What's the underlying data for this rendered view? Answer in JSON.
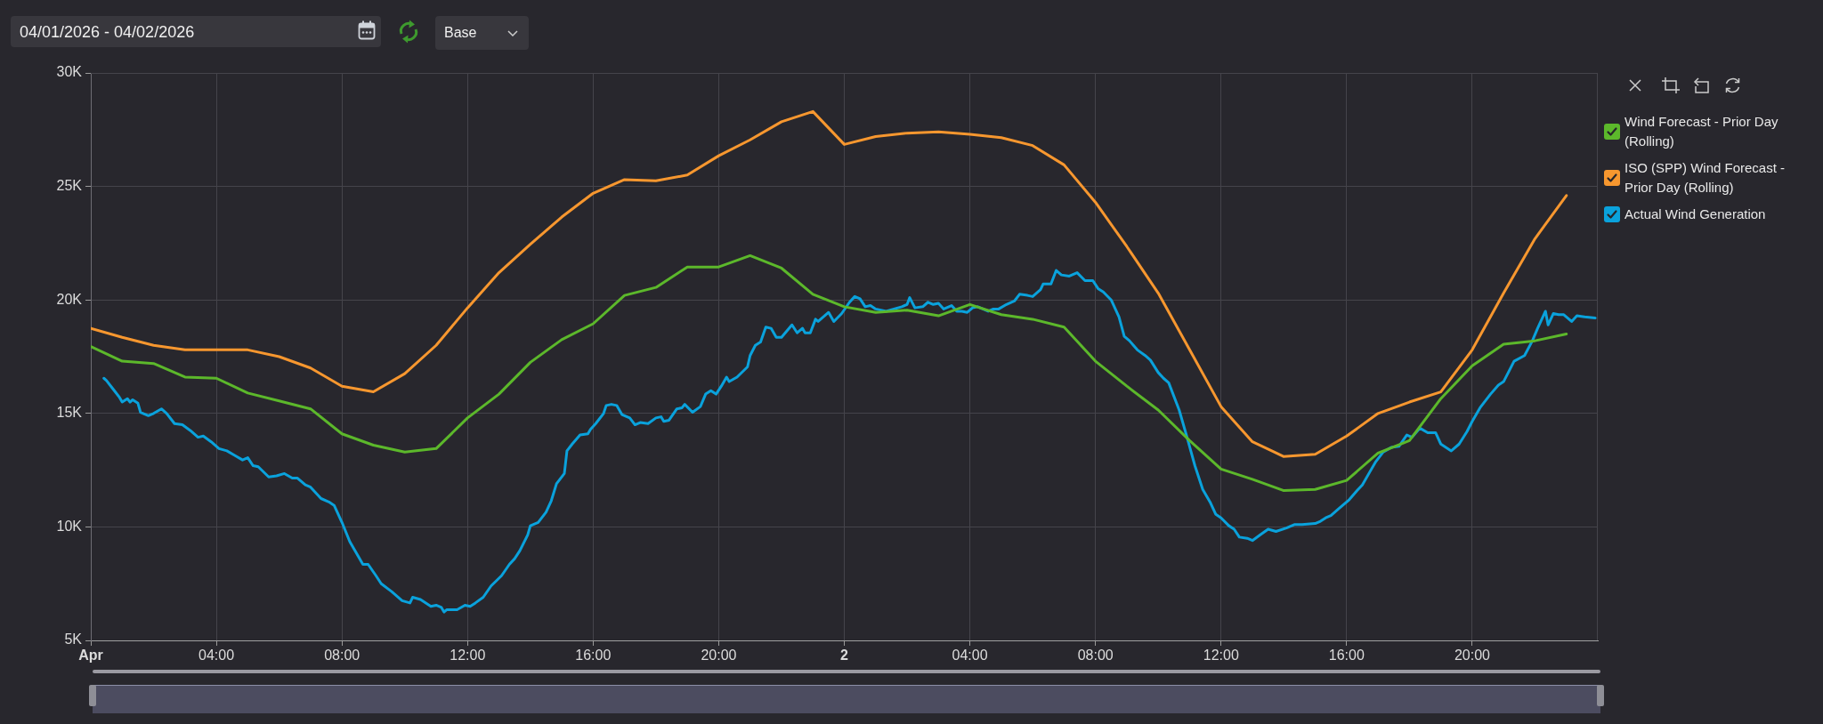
{
  "chart_data": {
    "type": "line",
    "annotations": [
      "04/01/2026 - 04/02/2026",
      "Base"
    ],
    "x": [
      "2026-04-01T00:00",
      "2026-04-01T01:00",
      "2026-04-01T02:00",
      "2026-04-01T03:00",
      "2026-04-01T04:00",
      "2026-04-01T05:00",
      "2026-04-01T06:00",
      "2026-04-01T07:00",
      "2026-04-01T08:00",
      "2026-04-01T09:00",
      "2026-04-01T10:00",
      "2026-04-01T11:00",
      "2026-04-01T12:00",
      "2026-04-01T13:00",
      "2026-04-01T14:00",
      "2026-04-01T15:00",
      "2026-04-01T16:00",
      "2026-04-01T17:00",
      "2026-04-01T18:00",
      "2026-04-01T19:00",
      "2026-04-01T20:00",
      "2026-04-01T21:00",
      "2026-04-01T22:00",
      "2026-04-01T23:00",
      "2026-04-02T00:00",
      "2026-04-02T01:00",
      "2026-04-02T02:00",
      "2026-04-02T03:00",
      "2026-04-02T04:00",
      "2026-04-02T05:00",
      "2026-04-02T06:00",
      "2026-04-02T07:00",
      "2026-04-02T08:00",
      "2026-04-02T09:00",
      "2026-04-02T10:00",
      "2026-04-02T11:00",
      "2026-04-02T12:00",
      "2026-04-02T13:00",
      "2026-04-02T14:00",
      "2026-04-02T15:00",
      "2026-04-02T16:00",
      "2026-04-02T17:00",
      "2026-04-02T18:00",
      "2026-04-02T19:00",
      "2026-04-02T20:00",
      "2026-04-02T21:00",
      "2026-04-02T22:00",
      "2026-04-02T23:00"
    ],
    "xlim": [
      "2026-04-01T00:00",
      "2026-04-03T00:00"
    ],
    "xticks": [
      {
        "value": "2026-04-01T00:00",
        "label": "Apr"
      },
      {
        "value": "2026-04-01T04:00",
        "label": "04:00"
      },
      {
        "value": "2026-04-01T08:00",
        "label": "08:00"
      },
      {
        "value": "2026-04-01T12:00",
        "label": "12:00"
      },
      {
        "value": "2026-04-01T16:00",
        "label": "16:00"
      },
      {
        "value": "2026-04-01T20:00",
        "label": "20:00"
      },
      {
        "value": "2026-04-02T00:00",
        "label": "2"
      },
      {
        "value": "2026-04-02T04:00",
        "label": "04:00"
      },
      {
        "value": "2026-04-02T08:00",
        "label": "08:00"
      },
      {
        "value": "2026-04-02T12:00",
        "label": "12:00"
      },
      {
        "value": "2026-04-02T16:00",
        "label": "16:00"
      },
      {
        "value": "2026-04-02T20:00",
        "label": "20:00"
      }
    ],
    "ylim": [
      5000,
      30000
    ],
    "yticks": [
      {
        "value": 5000,
        "label": "5K"
      },
      {
        "value": 10000,
        "label": "10K"
      },
      {
        "value": 15000,
        "label": "15K"
      },
      {
        "value": 20000,
        "label": "20K"
      },
      {
        "value": 25000,
        "label": "25K"
      },
      {
        "value": 30000,
        "label": "30K"
      }
    ],
    "grid": true,
    "legend": "top right",
    "series": [
      {
        "name": "Wind Forecast - Prior Day (Rolling)",
        "color": "#5cb82b",
        "values": [
          17950,
          17300,
          17200,
          16600,
          16550,
          15900,
          15550,
          15200,
          14100,
          13600,
          13300,
          13450,
          14800,
          15850,
          17250,
          18250,
          18950,
          20200,
          20550,
          21450,
          21450,
          21950,
          21400,
          20250,
          19700,
          19450,
          19550,
          19300,
          19800,
          19350,
          19150,
          18800,
          17300,
          16200,
          15150,
          13800,
          12550,
          12100,
          11600,
          11650,
          12050,
          13250,
          13800,
          15650,
          17100,
          18050,
          18200,
          18500
        ]
      },
      {
        "name": "ISO (SPP) Wind Forecast - Prior Day (Rolling)",
        "color": "#f7972f",
        "values": [
          18750,
          18350,
          18000,
          17800,
          17800,
          17800,
          17500,
          17000,
          16200,
          15950,
          16750,
          18000,
          19650,
          21200,
          22450,
          23650,
          24700,
          25300,
          25250,
          25500,
          26350,
          27050,
          27850,
          28300,
          26850,
          27200,
          27350,
          27400,
          27300,
          27150,
          26800,
          25950,
          24300,
          22350,
          20300,
          17800,
          15300,
          13750,
          13100,
          13200,
          14000,
          15000,
          15500,
          15950,
          17800,
          20300,
          22700,
          24600
        ]
      },
      {
        "name": "Actual Wind Generation",
        "color": "#0aa2dc",
        "x": [
          "2026-04-01T00:25",
          "2026-04-01T00:30",
          "2026-04-01T00:45",
          "2026-04-01T00:55",
          "2026-04-01T01:00",
          "2026-04-01T01:10",
          "2026-04-01T01:15",
          "2026-04-01T01:20",
          "2026-04-01T01:30",
          "2026-04-01T01:35",
          "2026-04-01T01:50",
          "2026-04-01T02:00",
          "2026-04-01T02:15",
          "2026-04-01T02:25",
          "2026-04-01T02:40",
          "2026-04-01T02:55",
          "2026-04-01T03:10",
          "2026-04-01T03:25",
          "2026-04-01T03:35",
          "2026-04-01T03:50",
          "2026-04-01T04:05",
          "2026-04-01T04:20",
          "2026-04-01T04:35",
          "2026-04-01T04:50",
          "2026-04-01T05:00",
          "2026-04-01T05:10",
          "2026-04-01T05:20",
          "2026-04-01T05:40",
          "2026-04-01T05:55",
          "2026-04-01T06:10",
          "2026-04-01T06:25",
          "2026-04-01T06:35",
          "2026-04-01T06:50",
          "2026-04-01T07:00",
          "2026-04-01T07:20",
          "2026-04-01T07:35",
          "2026-04-01T07:45",
          "2026-04-01T08:00",
          "2026-04-01T08:15",
          "2026-04-01T08:40",
          "2026-04-01T08:50",
          "2026-04-01T09:05",
          "2026-04-01T09:15",
          "2026-04-01T09:35",
          "2026-04-01T09:55",
          "2026-04-01T10:10",
          "2026-04-01T10:15",
          "2026-04-01T10:30",
          "2026-04-01T10:50",
          "2026-04-01T11:00",
          "2026-04-01T11:10",
          "2026-04-01T11:15",
          "2026-04-01T11:20",
          "2026-04-01T11:40",
          "2026-04-01T11:55",
          "2026-04-01T12:05",
          "2026-04-01T12:15",
          "2026-04-01T12:30",
          "2026-04-01T12:45",
          "2026-04-01T13:05",
          "2026-04-01T13:20",
          "2026-04-01T13:30",
          "2026-04-01T13:40",
          "2026-04-01T13:55",
          "2026-04-01T14:00",
          "2026-04-01T14:15",
          "2026-04-01T14:30",
          "2026-04-01T14:40",
          "2026-04-01T14:50",
          "2026-04-01T15:05",
          "2026-04-01T15:10",
          "2026-04-01T15:20",
          "2026-04-01T15:35",
          "2026-04-01T15:50",
          "2026-04-01T15:55",
          "2026-04-01T16:05",
          "2026-04-01T16:20",
          "2026-04-01T16:25",
          "2026-04-01T16:35",
          "2026-04-01T16:45",
          "2026-04-01T16:55",
          "2026-04-01T17:10",
          "2026-04-01T17:20",
          "2026-04-01T17:30",
          "2026-04-01T17:45",
          "2026-04-01T18:00",
          "2026-04-01T18:10",
          "2026-04-01T18:15",
          "2026-04-01T18:25",
          "2026-04-01T18:40",
          "2026-04-01T18:50",
          "2026-04-01T18:55",
          "2026-04-01T19:10",
          "2026-04-01T19:25",
          "2026-04-01T19:35",
          "2026-04-01T19:45",
          "2026-04-01T19:55",
          "2026-04-01T20:05",
          "2026-04-01T20:15",
          "2026-04-01T20:20",
          "2026-04-01T20:35",
          "2026-04-01T20:55",
          "2026-04-01T21:00",
          "2026-04-01T21:10",
          "2026-04-01T21:20",
          "2026-04-01T21:30",
          "2026-04-01T21:40",
          "2026-04-01T21:50",
          "2026-04-01T22:00",
          "2026-04-01T22:20",
          "2026-04-01T22:30",
          "2026-04-01T22:40",
          "2026-04-01T22:45",
          "2026-04-01T22:55",
          "2026-04-01T23:05",
          "2026-04-01T23:10",
          "2026-04-01T23:30",
          "2026-04-01T23:40",
          "2026-04-01T23:55",
          "2026-04-02T00:10",
          "2026-04-02T00:20",
          "2026-04-02T00:30",
          "2026-04-02T00:40",
          "2026-04-02T00:50",
          "2026-04-02T01:00",
          "2026-04-02T01:20",
          "2026-04-02T01:35",
          "2026-04-02T01:50",
          "2026-04-02T02:00",
          "2026-04-02T02:05",
          "2026-04-02T02:15",
          "2026-04-02T02:30",
          "2026-04-02T02:40",
          "2026-04-02T02:50",
          "2026-04-02T03:00",
          "2026-04-02T03:10",
          "2026-04-02T03:25",
          "2026-04-02T03:35",
          "2026-04-02T03:45",
          "2026-04-02T03:55",
          "2026-04-02T04:05",
          "2026-04-02T04:15",
          "2026-04-02T04:25",
          "2026-04-02T04:35",
          "2026-04-02T04:45",
          "2026-04-02T04:55",
          "2026-04-02T05:10",
          "2026-04-02T05:25",
          "2026-04-02T05:35",
          "2026-04-02T05:50",
          "2026-04-02T06:00",
          "2026-04-02T06:15",
          "2026-04-02T06:20",
          "2026-04-02T06:35",
          "2026-04-02T06:45",
          "2026-04-02T06:55",
          "2026-04-02T07:10",
          "2026-04-02T07:25",
          "2026-04-02T07:40",
          "2026-04-02T07:55",
          "2026-04-02T08:05",
          "2026-04-02T08:15",
          "2026-04-02T08:30",
          "2026-04-02T08:45",
          "2026-04-02T08:55",
          "2026-04-02T09:05",
          "2026-04-02T09:20",
          "2026-04-02T09:35",
          "2026-04-02T09:45",
          "2026-04-02T10:00",
          "2026-04-02T10:10",
          "2026-04-02T10:20",
          "2026-04-02T10:40",
          "2026-04-02T10:55",
          "2026-04-02T11:10",
          "2026-04-02T11:25",
          "2026-04-02T11:40",
          "2026-04-02T11:50",
          "2026-04-02T12:00",
          "2026-04-02T12:15",
          "2026-04-02T12:25",
          "2026-04-02T12:35",
          "2026-04-02T12:50",
          "2026-04-02T13:00",
          "2026-04-02T13:15",
          "2026-04-02T13:30",
          "2026-04-02T13:45",
          "2026-04-02T14:05",
          "2026-04-02T14:20",
          "2026-04-02T14:35",
          "2026-04-02T15:00",
          "2026-04-02T15:10",
          "2026-04-02T15:20",
          "2026-04-02T15:30",
          "2026-04-02T15:45",
          "2026-04-02T16:05",
          "2026-04-02T16:20",
          "2026-04-02T16:30",
          "2026-04-02T16:45",
          "2026-04-02T16:55",
          "2026-04-02T17:10",
          "2026-04-02T17:25",
          "2026-04-02T17:40",
          "2026-04-02T17:55",
          "2026-04-02T18:05",
          "2026-04-02T18:20",
          "2026-04-02T18:35",
          "2026-04-02T18:50",
          "2026-04-02T19:00",
          "2026-04-02T19:20",
          "2026-04-02T19:35",
          "2026-04-02T19:50",
          "2026-04-02T20:00",
          "2026-04-02T20:15",
          "2026-04-02T20:35",
          "2026-04-02T20:50",
          "2026-04-02T21:00",
          "2026-04-02T21:10",
          "2026-04-02T21:20",
          "2026-04-02T21:40",
          "2026-04-02T21:55",
          "2026-04-02T22:05",
          "2026-04-02T22:20",
          "2026-04-02T22:25",
          "2026-04-02T22:35",
          "2026-04-02T22:45",
          "2026-04-02T22:55",
          "2026-04-02T23:10",
          "2026-04-02T23:20",
          "2026-04-02T23:35",
          "2026-04-02T23:55"
        ],
        "values": [
          16550,
          16450,
          16000,
          15700,
          15500,
          15650,
          15500,
          15600,
          15450,
          15050,
          14900,
          15000,
          15200,
          15000,
          14550,
          14500,
          14250,
          13950,
          14000,
          13750,
          13450,
          13350,
          13150,
          12950,
          13050,
          12700,
          12650,
          12200,
          12250,
          12350,
          12150,
          12150,
          11850,
          11750,
          11250,
          11100,
          10950,
          10200,
          9350,
          8350,
          8350,
          7850,
          7500,
          7150,
          6750,
          6650,
          6900,
          6800,
          6500,
          6550,
          6450,
          6250,
          6350,
          6350,
          6550,
          6500,
          6650,
          6900,
          7400,
          7850,
          8350,
          8600,
          8950,
          9650,
          10050,
          10200,
          10650,
          11150,
          11900,
          12350,
          13350,
          13650,
          14050,
          14100,
          14300,
          14550,
          15000,
          15350,
          15400,
          15350,
          14950,
          14800,
          14500,
          14600,
          14550,
          14800,
          14850,
          14650,
          14700,
          15200,
          15250,
          15400,
          15050,
          15300,
          15850,
          16000,
          15850,
          16200,
          16600,
          16400,
          16600,
          17050,
          17550,
          18000,
          18150,
          18800,
          18750,
          18350,
          18350,
          18900,
          18550,
          18750,
          18550,
          18550,
          19150,
          19050,
          19450,
          19050,
          19400,
          19900,
          20150,
          20050,
          19700,
          19750,
          19600,
          19500,
          19600,
          19700,
          19800,
          20100,
          19650,
          19700,
          19900,
          19800,
          19850,
          19600,
          19750,
          19500,
          19500,
          19450,
          19650,
          19700,
          19600,
          19500,
          19600,
          19600,
          19800,
          19950,
          20250,
          20200,
          20150,
          20450,
          20700,
          20700,
          21300,
          21100,
          21050,
          21200,
          20850,
          20850,
          20500,
          20350,
          20000,
          19250,
          18400,
          18200,
          17800,
          17550,
          17350,
          16800,
          16550,
          16350,
          15150,
          13950,
          12700,
          11650,
          11050,
          10550,
          10400,
          10050,
          9900,
          9550,
          9500,
          9400,
          9650,
          9900,
          9800,
          9950,
          10100,
          10100,
          10150,
          10250,
          10400,
          10500,
          10800,
          11200,
          11600,
          11850,
          12450,
          12850,
          13300,
          13500,
          13550,
          14050,
          13950,
          14350,
          14150,
          14150,
          13650,
          13350,
          13650,
          14200,
          14650,
          15250,
          15850,
          16250,
          16400,
          16850,
          17300,
          17550,
          18200,
          18750,
          19500,
          18900,
          19400,
          19350,
          19350,
          19050,
          19300,
          19250,
          19200
        ]
      }
    ]
  }
}
